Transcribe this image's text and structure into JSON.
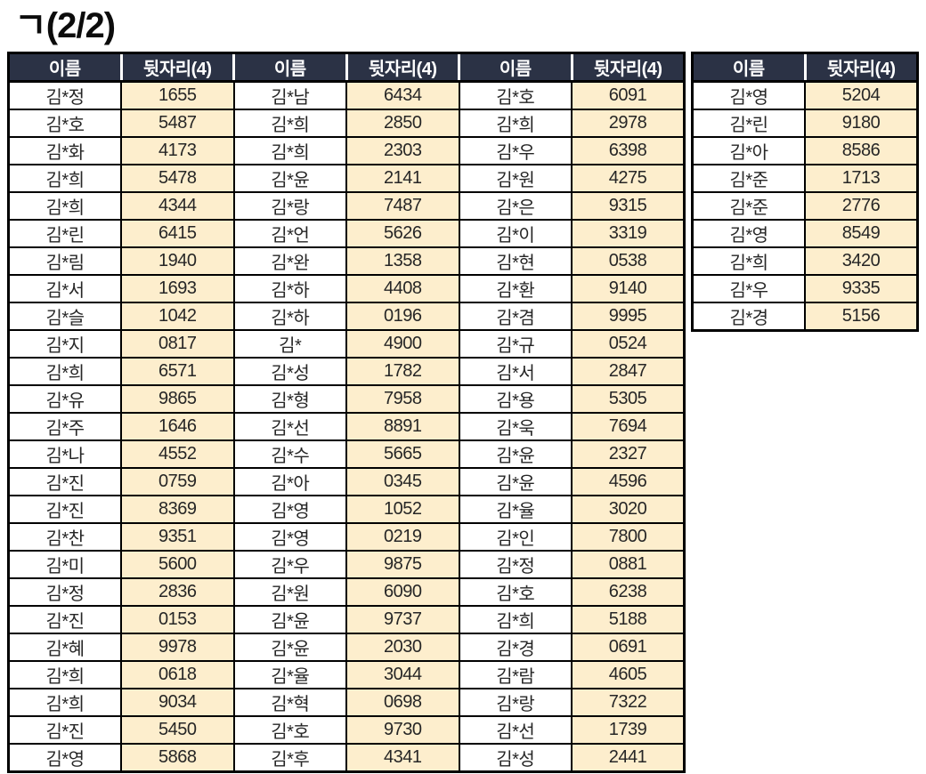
{
  "page": {
    "title": "ㄱ(2/2)"
  },
  "colors": {
    "header_bg": "#2b3245",
    "header_text": "#ffffff",
    "digits_cell_bg": "#fdeecd",
    "border": "#000000",
    "cell_text": "#262626",
    "page_bg": "#ffffff"
  },
  "table": {
    "header": {
      "name_label": "이름",
      "digits_label": "뒷자리(4)"
    },
    "groups": [
      {
        "rows": [
          {
            "name": "김*정",
            "digits": "1655"
          },
          {
            "name": "김*호",
            "digits": "5487"
          },
          {
            "name": "김*화",
            "digits": "4173"
          },
          {
            "name": "김*희",
            "digits": "5478"
          },
          {
            "name": "김*희",
            "digits": "4344"
          },
          {
            "name": "김*린",
            "digits": "6415"
          },
          {
            "name": "김*림",
            "digits": "1940"
          },
          {
            "name": "김*서",
            "digits": "1693"
          },
          {
            "name": "김*슬",
            "digits": "1042"
          },
          {
            "name": "김*지",
            "digits": "0817"
          },
          {
            "name": "김*희",
            "digits": "6571"
          },
          {
            "name": "김*유",
            "digits": "9865"
          },
          {
            "name": "김*주",
            "digits": "1646"
          },
          {
            "name": "김*나",
            "digits": "4552"
          },
          {
            "name": "김*진",
            "digits": "0759"
          },
          {
            "name": "김*진",
            "digits": "8369"
          },
          {
            "name": "김*찬",
            "digits": "9351"
          },
          {
            "name": "김*미",
            "digits": "5600"
          },
          {
            "name": "김*정",
            "digits": "2836"
          },
          {
            "name": "김*진",
            "digits": "0153"
          },
          {
            "name": "김*혜",
            "digits": "9978"
          },
          {
            "name": "김*희",
            "digits": "0618"
          },
          {
            "name": "김*희",
            "digits": "9034"
          },
          {
            "name": "김*진",
            "digits": "5450"
          },
          {
            "name": "김*영",
            "digits": "5868"
          }
        ]
      },
      {
        "rows": [
          {
            "name": "김*남",
            "digits": "6434"
          },
          {
            "name": "김*희",
            "digits": "2850"
          },
          {
            "name": "김*희",
            "digits": "2303"
          },
          {
            "name": "김*윤",
            "digits": "2141"
          },
          {
            "name": "김*랑",
            "digits": "7487"
          },
          {
            "name": "김*언",
            "digits": "5626"
          },
          {
            "name": "김*완",
            "digits": "1358"
          },
          {
            "name": "김*하",
            "digits": "4408"
          },
          {
            "name": "김*하",
            "digits": "0196"
          },
          {
            "name": "김*",
            "digits": "4900"
          },
          {
            "name": "김*성",
            "digits": "1782"
          },
          {
            "name": "김*형",
            "digits": "7958"
          },
          {
            "name": "김*선",
            "digits": "8891"
          },
          {
            "name": "김*수",
            "digits": "5665"
          },
          {
            "name": "김*아",
            "digits": "0345"
          },
          {
            "name": "김*영",
            "digits": "1052"
          },
          {
            "name": "김*영",
            "digits": "0219"
          },
          {
            "name": "김*우",
            "digits": "9875"
          },
          {
            "name": "김*원",
            "digits": "6090"
          },
          {
            "name": "김*윤",
            "digits": "9737"
          },
          {
            "name": "김*윤",
            "digits": "2030"
          },
          {
            "name": "김*율",
            "digits": "3044"
          },
          {
            "name": "김*혁",
            "digits": "0698"
          },
          {
            "name": "김*호",
            "digits": "9730"
          },
          {
            "name": "김*후",
            "digits": "4341"
          }
        ]
      },
      {
        "rows": [
          {
            "name": "김*호",
            "digits": "6091"
          },
          {
            "name": "김*희",
            "digits": "2978"
          },
          {
            "name": "김*우",
            "digits": "6398"
          },
          {
            "name": "김*원",
            "digits": "4275"
          },
          {
            "name": "김*은",
            "digits": "9315"
          },
          {
            "name": "김*이",
            "digits": "3319"
          },
          {
            "name": "김*현",
            "digits": "0538"
          },
          {
            "name": "김*환",
            "digits": "9140"
          },
          {
            "name": "김*겸",
            "digits": "9995"
          },
          {
            "name": "김*규",
            "digits": "0524"
          },
          {
            "name": "김*서",
            "digits": "2847"
          },
          {
            "name": "김*용",
            "digits": "5305"
          },
          {
            "name": "김*욱",
            "digits": "7694"
          },
          {
            "name": "김*윤",
            "digits": "2327"
          },
          {
            "name": "김*윤",
            "digits": "4596"
          },
          {
            "name": "김*율",
            "digits": "3020"
          },
          {
            "name": "김*인",
            "digits": "7800"
          },
          {
            "name": "김*정",
            "digits": "0881"
          },
          {
            "name": "김*호",
            "digits": "6238"
          },
          {
            "name": "김*희",
            "digits": "5188"
          },
          {
            "name": "김*경",
            "digits": "0691"
          },
          {
            "name": "김*람",
            "digits": "4605"
          },
          {
            "name": "김*랑",
            "digits": "7322"
          },
          {
            "name": "김*선",
            "digits": "1739"
          },
          {
            "name": "김*성",
            "digits": "2441"
          }
        ]
      },
      {
        "rows": [
          {
            "name": "김*영",
            "digits": "5204"
          },
          {
            "name": "김*린",
            "digits": "9180"
          },
          {
            "name": "김*아",
            "digits": "8586"
          },
          {
            "name": "김*준",
            "digits": "1713"
          },
          {
            "name": "김*준",
            "digits": "2776"
          },
          {
            "name": "김*영",
            "digits": "8549"
          },
          {
            "name": "김*희",
            "digits": "3420"
          },
          {
            "name": "김*우",
            "digits": "9335"
          },
          {
            "name": "김*경",
            "digits": "5156"
          }
        ]
      }
    ]
  }
}
